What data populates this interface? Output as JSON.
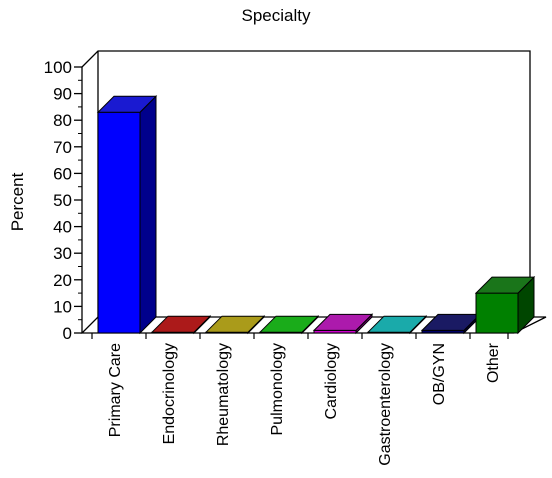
{
  "chart_data": {
    "type": "bar",
    "title": "Specialty",
    "xlabel": "",
    "ylabel": "Percent",
    "ylim": [
      0,
      100
    ],
    "yticks": [
      0,
      10,
      20,
      30,
      40,
      50,
      60,
      70,
      80,
      90,
      100
    ],
    "grid": false,
    "legend": "none",
    "style": "3d",
    "categories": [
      "Primary Care",
      "Endocrinology",
      "Rheumatology",
      "Pulmonology",
      "Cardiology",
      "Gastroenterology",
      "OB/GYN",
      "Other"
    ],
    "values": [
      83,
      0.3,
      0.3,
      0.3,
      1,
      0.3,
      1,
      15
    ],
    "colors": [
      "#0000ff",
      "#cc0000",
      "#c8b400",
      "#00cc00",
      "#cc00cc",
      "#00c8c8",
      "#000066",
      "#008000"
    ]
  }
}
